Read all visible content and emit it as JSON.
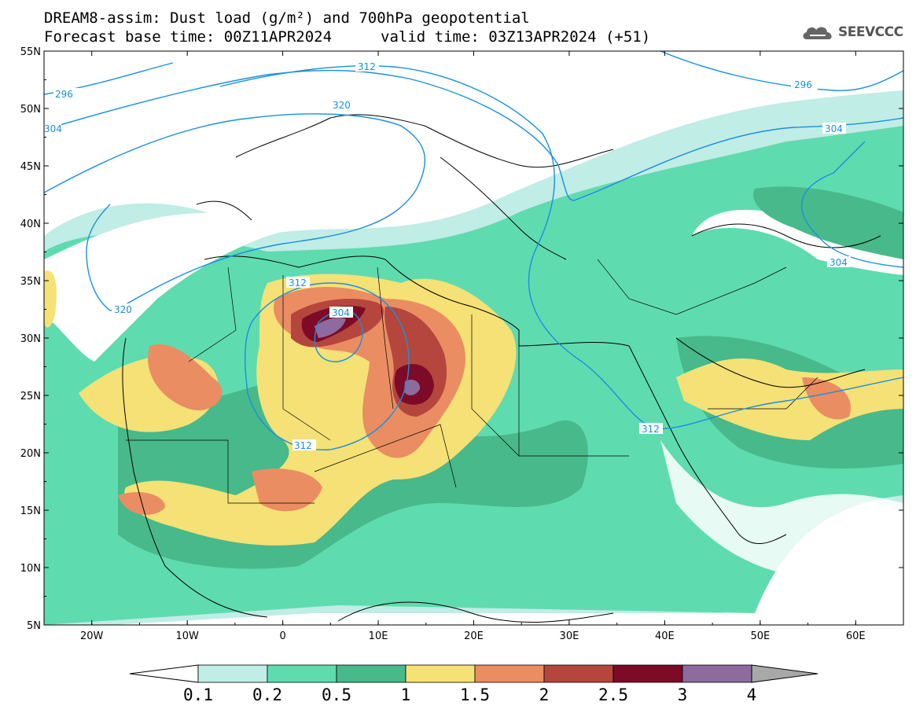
{
  "title": {
    "line1": "DREAM8-assim: Dust load (g/m²) and 700hPa geopotential",
    "line2_base": "Forecast base time: 00Z11APR2024",
    "line2_valid": "valid time: 03Z13APR2024 (+51)"
  },
  "logo": {
    "text": "SEEVCCC",
    "icon": "cloud-logo-icon"
  },
  "axes": {
    "lat_labels": [
      "55N",
      "50N",
      "45N",
      "40N",
      "35N",
      "30N",
      "25N",
      "20N",
      "15N",
      "10N",
      "5N"
    ],
    "lon_labels": [
      "20W",
      "10W",
      "0",
      "10E",
      "20E",
      "30E",
      "40E",
      "50E",
      "60E"
    ]
  },
  "contours": {
    "labels": [
      "296",
      "296",
      "304",
      "304",
      "304",
      "304",
      "312",
      "312",
      "312",
      "312",
      "320",
      "320"
    ]
  },
  "colorbar": {
    "colors": [
      "#c0ede5",
      "#5fdbb0",
      "#48b98a",
      "#f5e176",
      "#ea8d62",
      "#b4463e",
      "#7d0b27",
      "#8e6b9e"
    ],
    "left_arrow_color": "#ffffff",
    "right_arrow_color": "#a8a8a8",
    "labels": [
      "0.1",
      "0.2",
      "0.5",
      "1",
      "1.5",
      "2",
      "2.5",
      "3",
      "4"
    ]
  }
}
